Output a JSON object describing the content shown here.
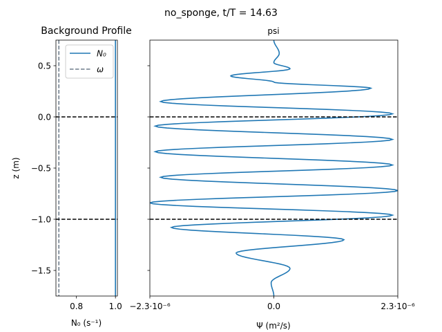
{
  "figure": {
    "suptitle": "no_sponge, t/T = 14.63"
  },
  "chart_data": [
    {
      "type": "line",
      "title": "Background Profile",
      "xlabel": "N₀ (s⁻¹)",
      "ylabel": "z (m)",
      "xlim": [
        0.695,
        1.01
      ],
      "ylim": [
        -1.75,
        0.75
      ],
      "xticks": [
        {
          "value": 0.8,
          "label": "0.8"
        },
        {
          "value": 1.0,
          "label": "1.0"
        }
      ],
      "yticks": [
        {
          "value": 0.5,
          "label": "0.5"
        },
        {
          "value": 0.0,
          "label": "0.0"
        },
        {
          "value": -0.5,
          "label": "−0.5"
        },
        {
          "value": -1.0,
          "label": "−1.0"
        },
        {
          "value": -1.5,
          "label": "−1.5"
        }
      ],
      "series": [
        {
          "name": "N₀",
          "x_constant": 1.0,
          "color": "#1f77b4",
          "style": "solid"
        },
        {
          "name": "ω",
          "x_constant": 0.71,
          "color": "#6f7d8c",
          "style": "dashed"
        }
      ],
      "hlines": [
        {
          "y": 0.0,
          "color": "#000000",
          "style": "dashed"
        },
        {
          "y": -1.0,
          "color": "#000000",
          "style": "dashed"
        }
      ],
      "legend": {
        "position": "upper-right",
        "entries": [
          "N₀",
          "ω"
        ]
      }
    },
    {
      "type": "line",
      "title": "psi",
      "xlabel": "Ψ (m²/s)",
      "ylabel": "",
      "xlim": [
        -2.3e-06,
        2.3e-06
      ],
      "ylim": [
        -1.75,
        0.75
      ],
      "xticks": [
        {
          "value": -2.3e-06,
          "label": "−2.3·10⁻⁶"
        },
        {
          "value": 0.0,
          "label": "0.0"
        },
        {
          "value": 2.3e-06,
          "label": "2.3·10⁻⁶"
        }
      ],
      "yticks_labels_visible": false,
      "hlines": [
        {
          "y": 0.0,
          "color": "#000000",
          "style": "dashed"
        },
        {
          "y": -1.0,
          "color": "#000000",
          "style": "dashed"
        }
      ],
      "series": [
        {
          "name": "psi",
          "color": "#1f77b4",
          "points": [
            {
              "z": 0.75,
              "psi": 0.0
            },
            {
              "z": 0.62,
              "psi": 1e-07
            },
            {
              "z": 0.53,
              "psi": 0.0
            },
            {
              "z": 0.47,
              "psi": 3e-07
            },
            {
              "z": 0.4,
              "psi": -8e-07
            },
            {
              "z": 0.34,
              "psi": 0.0
            },
            {
              "z": 0.28,
              "psi": 1.8e-06
            },
            {
              "z": 0.15,
              "psi": -2.1e-06
            },
            {
              "z": 0.03,
              "psi": 2.2e-06
            },
            {
              "z": -0.09,
              "psi": -2.2e-06
            },
            {
              "z": -0.22,
              "psi": 2.2e-06
            },
            {
              "z": -0.34,
              "psi": -2.2e-06
            },
            {
              "z": -0.47,
              "psi": 2.2e-06
            },
            {
              "z": -0.59,
              "psi": -2.1e-06
            },
            {
              "z": -0.72,
              "psi": 2.3e-06
            },
            {
              "z": -0.84,
              "psi": -2.3e-06
            },
            {
              "z": -0.96,
              "psi": 2.2e-06
            },
            {
              "z": -1.08,
              "psi": -1.9e-06
            },
            {
              "z": -1.2,
              "psi": 1.3e-06
            },
            {
              "z": -1.33,
              "psi": -7e-07
            },
            {
              "z": -1.48,
              "psi": 3e-07
            },
            {
              "z": -1.62,
              "psi": -5e-08
            },
            {
              "z": -1.75,
              "psi": 0.0
            }
          ]
        }
      ]
    }
  ]
}
